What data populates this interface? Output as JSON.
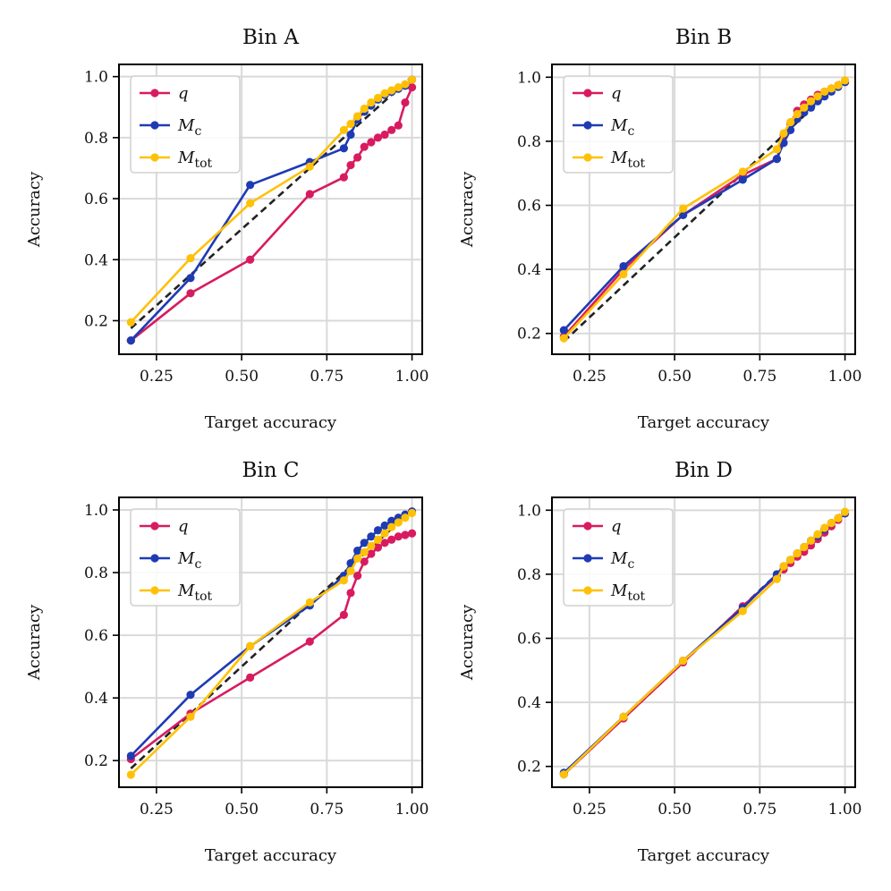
{
  "legend_labels": [
    {
      "base": "q",
      "sub": ""
    },
    {
      "base": "M",
      "sub": "c"
    },
    {
      "base": "M",
      "sub": "tot"
    }
  ],
  "colors": {
    "q": "#d81b60",
    "M_c": "#1e3bb4",
    "M_tot": "#ffc107",
    "diagonal": "#222222",
    "grid": "#d9d9d9"
  },
  "chart_data": [
    {
      "type": "line",
      "title": "Bin A",
      "xlabel": "Target accuracy",
      "ylabel": "Accuracy",
      "xlim": [
        0.14,
        1.03
      ],
      "ylim": [
        0.09,
        1.04
      ],
      "xticks": [
        0.25,
        0.5,
        0.75,
        1.0
      ],
      "xtick_labels": [
        "0.25",
        "0.50",
        "0.75",
        "1.00"
      ],
      "yticks": [
        0.2,
        0.4,
        0.6,
        0.8,
        1.0
      ],
      "ytick_labels": [
        "0.2",
        "0.4",
        "0.6",
        "0.8",
        "1.0"
      ],
      "grid": true,
      "legend": "top-left",
      "diagonal": [
        [
          0.175,
          0.175
        ],
        [
          1.0,
          1.0
        ]
      ],
      "series": [
        {
          "key": "q",
          "x": [
            0.175,
            0.35,
            0.525,
            0.7,
            0.8,
            0.82,
            0.84,
            0.86,
            0.88,
            0.9,
            0.92,
            0.94,
            0.96,
            0.98,
            1.0
          ],
          "y": [
            0.135,
            0.29,
            0.4,
            0.615,
            0.67,
            0.71,
            0.735,
            0.77,
            0.785,
            0.8,
            0.81,
            0.825,
            0.84,
            0.915,
            0.965
          ]
        },
        {
          "key": "M_c",
          "x": [
            0.175,
            0.35,
            0.525,
            0.7,
            0.8,
            0.82,
            0.84,
            0.86,
            0.88,
            0.9,
            0.92,
            0.94,
            0.96,
            0.98,
            1.0
          ],
          "y": [
            0.135,
            0.34,
            0.645,
            0.72,
            0.765,
            0.81,
            0.86,
            0.885,
            0.905,
            0.925,
            0.94,
            0.95,
            0.96,
            0.97,
            0.99
          ]
        },
        {
          "key": "M_tot",
          "x": [
            0.175,
            0.35,
            0.525,
            0.7,
            0.8,
            0.82,
            0.84,
            0.86,
            0.88,
            0.9,
            0.92,
            0.94,
            0.96,
            0.98,
            1.0
          ],
          "y": [
            0.195,
            0.405,
            0.585,
            0.705,
            0.825,
            0.845,
            0.87,
            0.895,
            0.915,
            0.93,
            0.945,
            0.955,
            0.965,
            0.975,
            0.99
          ]
        }
      ]
    },
    {
      "type": "line",
      "title": "Bin B",
      "xlabel": "Target accuracy",
      "ylabel": "Accuracy",
      "xlim": [
        0.14,
        1.03
      ],
      "ylim": [
        0.135,
        1.04
      ],
      "xticks": [
        0.25,
        0.5,
        0.75,
        1.0
      ],
      "xtick_labels": [
        "0.25",
        "0.50",
        "0.75",
        "1.00"
      ],
      "yticks": [
        0.2,
        0.4,
        0.6,
        0.8,
        1.0
      ],
      "ytick_labels": [
        "0.2",
        "0.4",
        "0.6",
        "0.8",
        "1.0"
      ],
      "grid": true,
      "legend": "top-left",
      "diagonal": [
        [
          0.175,
          0.175
        ],
        [
          1.0,
          1.0
        ]
      ],
      "series": [
        {
          "key": "q",
          "x": [
            0.175,
            0.35,
            0.525,
            0.7,
            0.8,
            0.82,
            0.84,
            0.86,
            0.88,
            0.9,
            0.92,
            0.94,
            0.96,
            0.98,
            1.0
          ],
          "y": [
            0.19,
            0.4,
            0.57,
            0.695,
            0.745,
            0.82,
            0.855,
            0.895,
            0.915,
            0.93,
            0.945,
            0.955,
            0.965,
            0.975,
            0.985
          ]
        },
        {
          "key": "M_c",
          "x": [
            0.175,
            0.35,
            0.525,
            0.7,
            0.8,
            0.82,
            0.84,
            0.86,
            0.88,
            0.9,
            0.92,
            0.94,
            0.96,
            0.98,
            1.0
          ],
          "y": [
            0.21,
            0.41,
            0.57,
            0.68,
            0.745,
            0.795,
            0.835,
            0.87,
            0.89,
            0.905,
            0.925,
            0.94,
            0.955,
            0.97,
            0.985
          ]
        },
        {
          "key": "M_tot",
          "x": [
            0.175,
            0.35,
            0.525,
            0.7,
            0.8,
            0.82,
            0.84,
            0.86,
            0.88,
            0.9,
            0.92,
            0.94,
            0.96,
            0.98,
            1.0
          ],
          "y": [
            0.185,
            0.385,
            0.59,
            0.705,
            0.775,
            0.825,
            0.86,
            0.885,
            0.905,
            0.925,
            0.94,
            0.955,
            0.965,
            0.975,
            0.99
          ]
        }
      ]
    },
    {
      "type": "line",
      "title": "Bin C",
      "xlabel": "Target accuracy",
      "ylabel": "Accuracy",
      "xlim": [
        0.14,
        1.03
      ],
      "ylim": [
        0.115,
        1.04
      ],
      "xticks": [
        0.25,
        0.5,
        0.75,
        1.0
      ],
      "xtick_labels": [
        "0.25",
        "0.50",
        "0.75",
        "1.00"
      ],
      "yticks": [
        0.2,
        0.4,
        0.6,
        0.8,
        1.0
      ],
      "ytick_labels": [
        "0.2",
        "0.4",
        "0.6",
        "0.8",
        "1.0"
      ],
      "grid": true,
      "legend": "top-left",
      "diagonal": [
        [
          0.175,
          0.175
        ],
        [
          1.0,
          1.0
        ]
      ],
      "series": [
        {
          "key": "q",
          "x": [
            0.175,
            0.35,
            0.525,
            0.7,
            0.8,
            0.82,
            0.84,
            0.86,
            0.88,
            0.9,
            0.92,
            0.94,
            0.96,
            0.98,
            1.0
          ],
          "y": [
            0.205,
            0.35,
            0.465,
            0.58,
            0.665,
            0.735,
            0.79,
            0.835,
            0.86,
            0.88,
            0.895,
            0.905,
            0.915,
            0.92,
            0.925
          ]
        },
        {
          "key": "M_c",
          "x": [
            0.175,
            0.35,
            0.525,
            0.7,
            0.8,
            0.82,
            0.84,
            0.86,
            0.88,
            0.9,
            0.92,
            0.94,
            0.96,
            0.98,
            1.0
          ],
          "y": [
            0.215,
            0.41,
            0.565,
            0.695,
            0.79,
            0.83,
            0.87,
            0.895,
            0.915,
            0.935,
            0.95,
            0.965,
            0.975,
            0.985,
            0.995
          ]
        },
        {
          "key": "M_tot",
          "x": [
            0.175,
            0.35,
            0.525,
            0.7,
            0.8,
            0.82,
            0.84,
            0.86,
            0.88,
            0.9,
            0.92,
            0.94,
            0.96,
            0.98,
            1.0
          ],
          "y": [
            0.155,
            0.34,
            0.565,
            0.705,
            0.775,
            0.805,
            0.845,
            0.865,
            0.885,
            0.905,
            0.925,
            0.945,
            0.96,
            0.975,
            0.99
          ]
        }
      ]
    },
    {
      "type": "line",
      "title": "Bin D",
      "xlabel": "Target accuracy",
      "ylabel": "Accuracy",
      "xlim": [
        0.14,
        1.03
      ],
      "ylim": [
        0.135,
        1.04
      ],
      "xticks": [
        0.25,
        0.5,
        0.75,
        1.0
      ],
      "xtick_labels": [
        "0.25",
        "0.50",
        "0.75",
        "1.00"
      ],
      "yticks": [
        0.2,
        0.4,
        0.6,
        0.8,
        1.0
      ],
      "ytick_labels": [
        "0.2",
        "0.4",
        "0.6",
        "0.8",
        "1.0"
      ],
      "grid": true,
      "legend": "top-left",
      "diagonal": [
        [
          0.175,
          0.175
        ],
        [
          1.0,
          1.0
        ]
      ],
      "series": [
        {
          "key": "q",
          "x": [
            0.175,
            0.35,
            0.525,
            0.7,
            0.8,
            0.82,
            0.84,
            0.86,
            0.88,
            0.9,
            0.92,
            0.94,
            0.96,
            0.98,
            1.0
          ],
          "y": [
            0.175,
            0.35,
            0.525,
            0.7,
            0.795,
            0.815,
            0.835,
            0.855,
            0.87,
            0.89,
            0.91,
            0.93,
            0.95,
            0.97,
            0.99
          ]
        },
        {
          "key": "M_c",
          "x": [
            0.175,
            0.35,
            0.525,
            0.7,
            0.8,
            0.82,
            0.84,
            0.86,
            0.88,
            0.9,
            0.92,
            0.94,
            0.96,
            0.98,
            1.0
          ],
          "y": [
            0.18,
            0.355,
            0.53,
            0.695,
            0.8,
            0.825,
            0.845,
            0.865,
            0.885,
            0.905,
            0.92,
            0.94,
            0.96,
            0.975,
            0.99
          ]
        },
        {
          "key": "M_tot",
          "x": [
            0.175,
            0.35,
            0.525,
            0.7,
            0.8,
            0.82,
            0.84,
            0.86,
            0.88,
            0.9,
            0.92,
            0.94,
            0.96,
            0.98,
            1.0
          ],
          "y": [
            0.175,
            0.355,
            0.53,
            0.685,
            0.785,
            0.825,
            0.845,
            0.865,
            0.885,
            0.905,
            0.925,
            0.945,
            0.96,
            0.975,
            0.995
          ]
        }
      ]
    }
  ]
}
